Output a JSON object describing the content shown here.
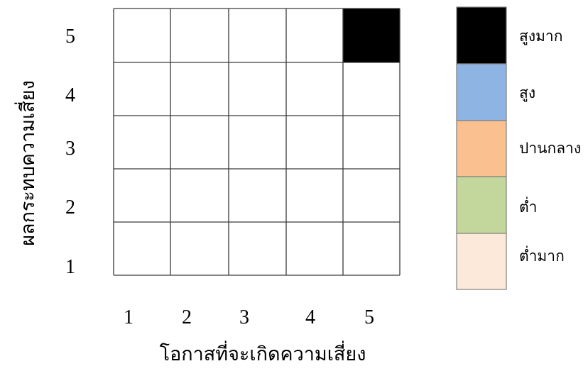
{
  "chart_data": {
    "type": "heatmap",
    "xlabel": "โอกาสที่จะเกิดความเสี่ยง",
    "ylabel": "ผลกระทบความเสี่ยง",
    "x_ticks": [
      "1",
      "2",
      "3",
      "4",
      "5"
    ],
    "y_ticks": [
      "1",
      "2",
      "3",
      "4",
      "5"
    ],
    "cells": [
      {
        "x": 5,
        "y": 5,
        "level": "สูงมาก"
      }
    ],
    "grid": true,
    "legend_position": "right",
    "legend": [
      {
        "label": "สูงมาก",
        "color": "#000000"
      },
      {
        "label": "สูง",
        "color": "#8EB4E3"
      },
      {
        "label": "ปานกลาง",
        "color": "#FAC090"
      },
      {
        "label": "ต่ำ",
        "color": "#C3D69B"
      },
      {
        "label": "ต่ำมาก",
        "color": "#FDE9D9"
      }
    ]
  }
}
